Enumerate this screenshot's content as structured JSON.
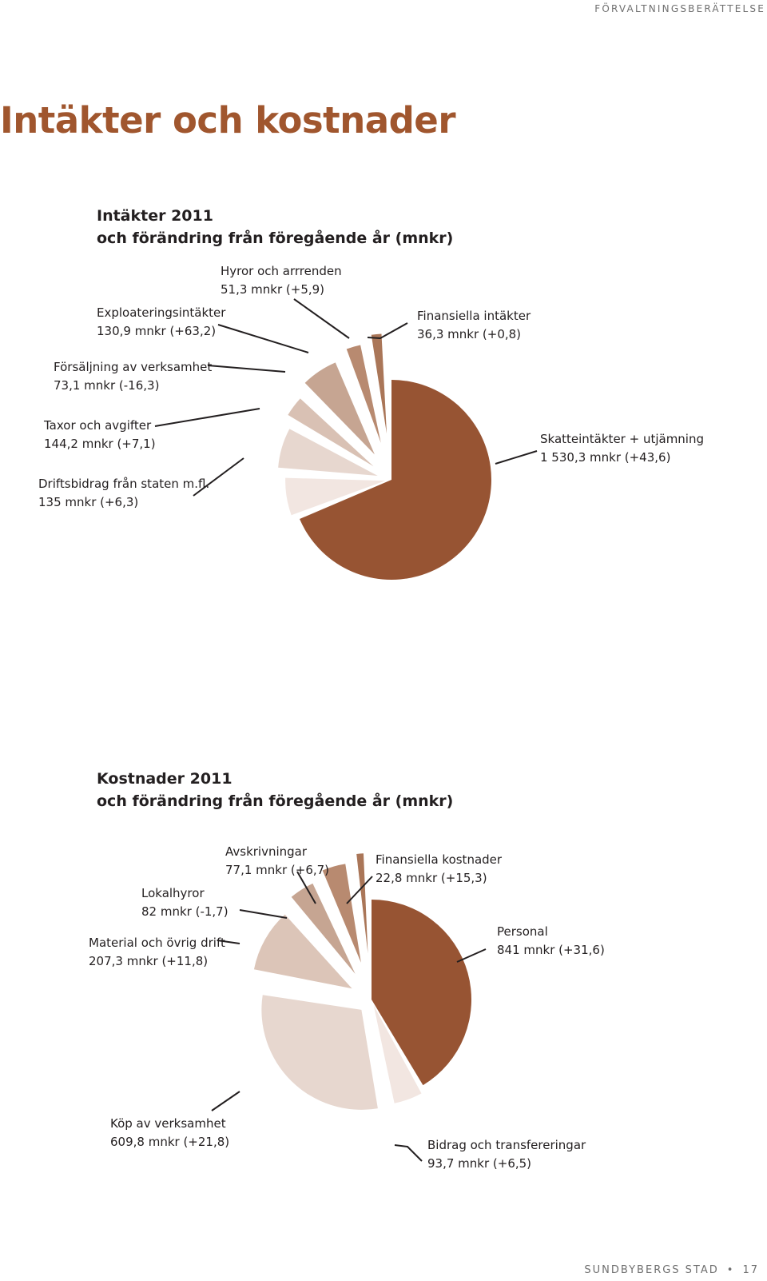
{
  "header": {
    "section": "FÖRVALTNINGSBERÄTTELSE"
  },
  "page_title": "Intäkter och kostnader",
  "footer": {
    "publisher": "SUNDBYBERGS STAD",
    "separator": "•",
    "page_number": "17"
  },
  "chart_data": [
    {
      "type": "pie",
      "title": [
        "Intäkter 2011",
        "och förändring från föregående år (mnkr)"
      ],
      "slices": [
        {
          "name": "Skatteintäkter + utjämning",
          "value_text": "1 530,3 mnkr (+43,6)",
          "value": 1530.3,
          "change": 43.6,
          "color": "#975433"
        },
        {
          "name": "Driftsbidrag från staten m.fl.",
          "value_text": "135 mnkr (+6,3)",
          "value": 135,
          "change": 6.3,
          "color": "#f2e6e1"
        },
        {
          "name": "Taxor och avgifter",
          "value_text": "144,2 mnkr (+7,1)",
          "value": 144.2,
          "change": 7.1,
          "color": "#e7d7cf"
        },
        {
          "name": "Försäljning av verksamhet",
          "value_text": "73,1 mnkr (-16,3)",
          "value": 73.1,
          "change": -16.3,
          "color": "#d9c1b4"
        },
        {
          "name": "Exploateringsintäkter",
          "value_text": "130,9 mnkr (+63,2)",
          "value": 130.9,
          "change": 63.2,
          "color": "#c6a592"
        },
        {
          "name": "Hyror och arrrenden",
          "value_text": "51,3 mnkr (+5,9)",
          "value": 51.3,
          "change": 5.9,
          "color": "#b88a70"
        },
        {
          "name": "Finansiella intäkter",
          "value_text": "36,3 mnkr (+0,8)",
          "value": 36.3,
          "change": 0.8,
          "color": "#aa7658"
        }
      ]
    },
    {
      "type": "pie",
      "title": [
        "Kostnader 2011",
        "och förändring från föregående år (mnkr)"
      ],
      "slices": [
        {
          "name": "Personal",
          "value_text": "841 mnkr (+31,6)",
          "value": 841,
          "change": 31.6,
          "color": "#975433"
        },
        {
          "name": "Bidrag och transfereringar",
          "value_text": "93,7 mnkr (+6,5)",
          "value": 93.7,
          "change": 6.5,
          "color": "#f2e6e1"
        },
        {
          "name": "Köp av verksamhet",
          "value_text": "609,8 mnkr (+21,8)",
          "value": 609.8,
          "change": 21.8,
          "color": "#e7d7cf"
        },
        {
          "name": "Material och övrig drift",
          "value_text": "207,3 mnkr (+11,8)",
          "value": 207.3,
          "change": 11.8,
          "color": "#dcc5b8"
        },
        {
          "name": "Lokalhyror",
          "value_text": "82 mnkr (-1,7)",
          "value": 82,
          "change": -1.7,
          "color": "#c6a592"
        },
        {
          "name": "Avskrivningar",
          "value_text": "77,1 mnkr (+6,7)",
          "value": 77.1,
          "change": 6.7,
          "color": "#b88a70"
        },
        {
          "name": "Finansiella kostnader",
          "value_text": "22,8 mnkr (+15,3)",
          "value": 22.8,
          "change": 15.3,
          "color": "#aa7658"
        }
      ]
    }
  ]
}
